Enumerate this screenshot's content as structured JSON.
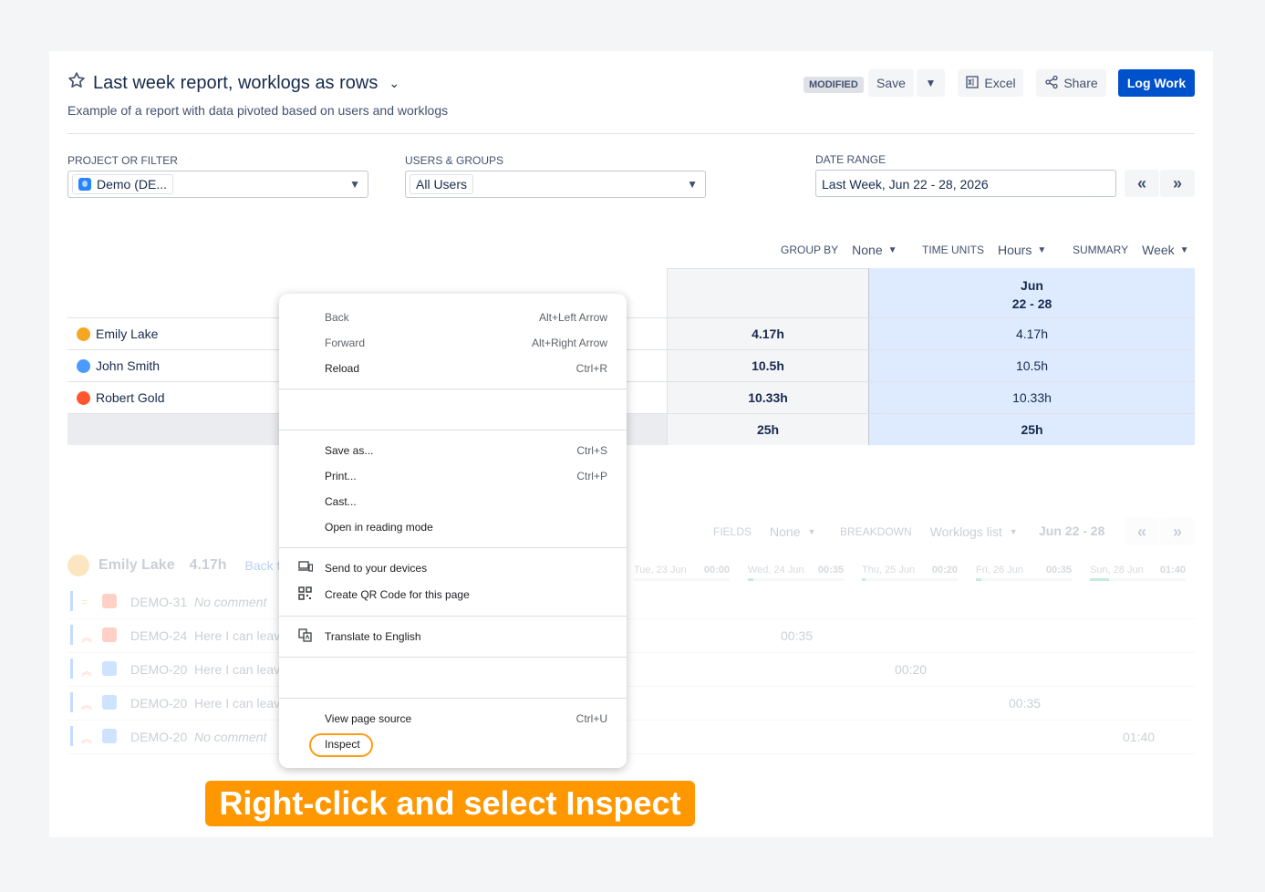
{
  "header": {
    "title": "Last week report, worklogs as rows",
    "subtitle": "Example of a report with data pivoted based on users and worklogs",
    "modified_badge": "MODIFIED",
    "save_label": "Save",
    "excel_label": "Excel",
    "share_label": "Share",
    "logwork_label": "Log Work"
  },
  "filters": {
    "project_label": "PROJECT OR FILTER",
    "project_value": "Demo (DE...",
    "users_label": "USERS & GROUPS",
    "users_value": "All Users",
    "date_label": "DATE RANGE",
    "date_value": "Last Week, Jun 22 - 28, 2026",
    "prev": "«",
    "next": "»"
  },
  "options": {
    "group_by_label": "GROUP BY",
    "group_by_value": "None",
    "time_units_label": "TIME UNITS",
    "time_units_value": "Hours",
    "summary_label": "SUMMARY",
    "summary_value": "Week"
  },
  "table": {
    "week_header_line1": "Jun",
    "week_header_line2": "22 - 28",
    "rows": [
      {
        "name": "Emily Lake",
        "total": "4.17h",
        "week": "4.17h",
        "avatar_color": "#f5a623"
      },
      {
        "name": "John Smith",
        "total": "10.5h",
        "week": "10.5h",
        "avatar_color": "#4c9aff"
      },
      {
        "name": "Robert Gold",
        "total": "10.33h",
        "week": "10.33h",
        "avatar_color": "#ff5630"
      }
    ],
    "grand_total": "25h",
    "grand_week": "25h"
  },
  "details": {
    "fields_label": "FIELDS",
    "fields_value": "None",
    "breakdown_label": "BREAKDOWN",
    "breakdown_value": "Worklogs list",
    "range": "Jun 22 - 28",
    "user_name": "Emily Lake",
    "user_total": "4.17h",
    "back_link": "Back to",
    "days": [
      {
        "label": "Tue, 23 Jun",
        "time": "00:00",
        "fill": 0
      },
      {
        "label": "Wed, 24 Jun",
        "time": "00:35",
        "fill": 0.06
      },
      {
        "label": "Thu, 25 Jun",
        "time": "00:20",
        "fill": 0.03
      },
      {
        "label": "Fri, 26 Jun",
        "time": "00:35",
        "fill": 0.06
      },
      {
        "label": "Sun, 28 Jun",
        "time": "01:40",
        "fill": 0.2
      }
    ],
    "worklogs": [
      {
        "key": "DEMO-31",
        "comment": "No comment",
        "time": ""
      },
      {
        "key": "DEMO-24",
        "comment": "Here I can leave",
        "time": "00:35"
      },
      {
        "key": "DEMO-20",
        "comment": "Here I can leave",
        "time": "00:20"
      },
      {
        "key": "DEMO-20",
        "comment": "Here I can leave",
        "time": "00:35"
      },
      {
        "key": "DEMO-20",
        "comment": "No comment",
        "time": "01:40"
      }
    ]
  },
  "context_menu": {
    "back": "Back",
    "back_sc": "Alt+Left Arrow",
    "forward": "Forward",
    "forward_sc": "Alt+Right Arrow",
    "reload": "Reload",
    "reload_sc": "Ctrl+R",
    "save_as": "Save as...",
    "save_as_sc": "Ctrl+S",
    "print": "Print...",
    "print_sc": "Ctrl+P",
    "cast": "Cast...",
    "reading": "Open in reading mode",
    "send": "Send to your devices",
    "qr": "Create QR Code for this page",
    "translate": "Translate to English",
    "view_source": "View page source",
    "view_source_sc": "Ctrl+U",
    "inspect": "Inspect"
  },
  "banner_text": "Right-click and select Inspect",
  "colors": {
    "primary": "#0052cc",
    "highlight": "#ff9800",
    "week_bg": "#deebff"
  }
}
